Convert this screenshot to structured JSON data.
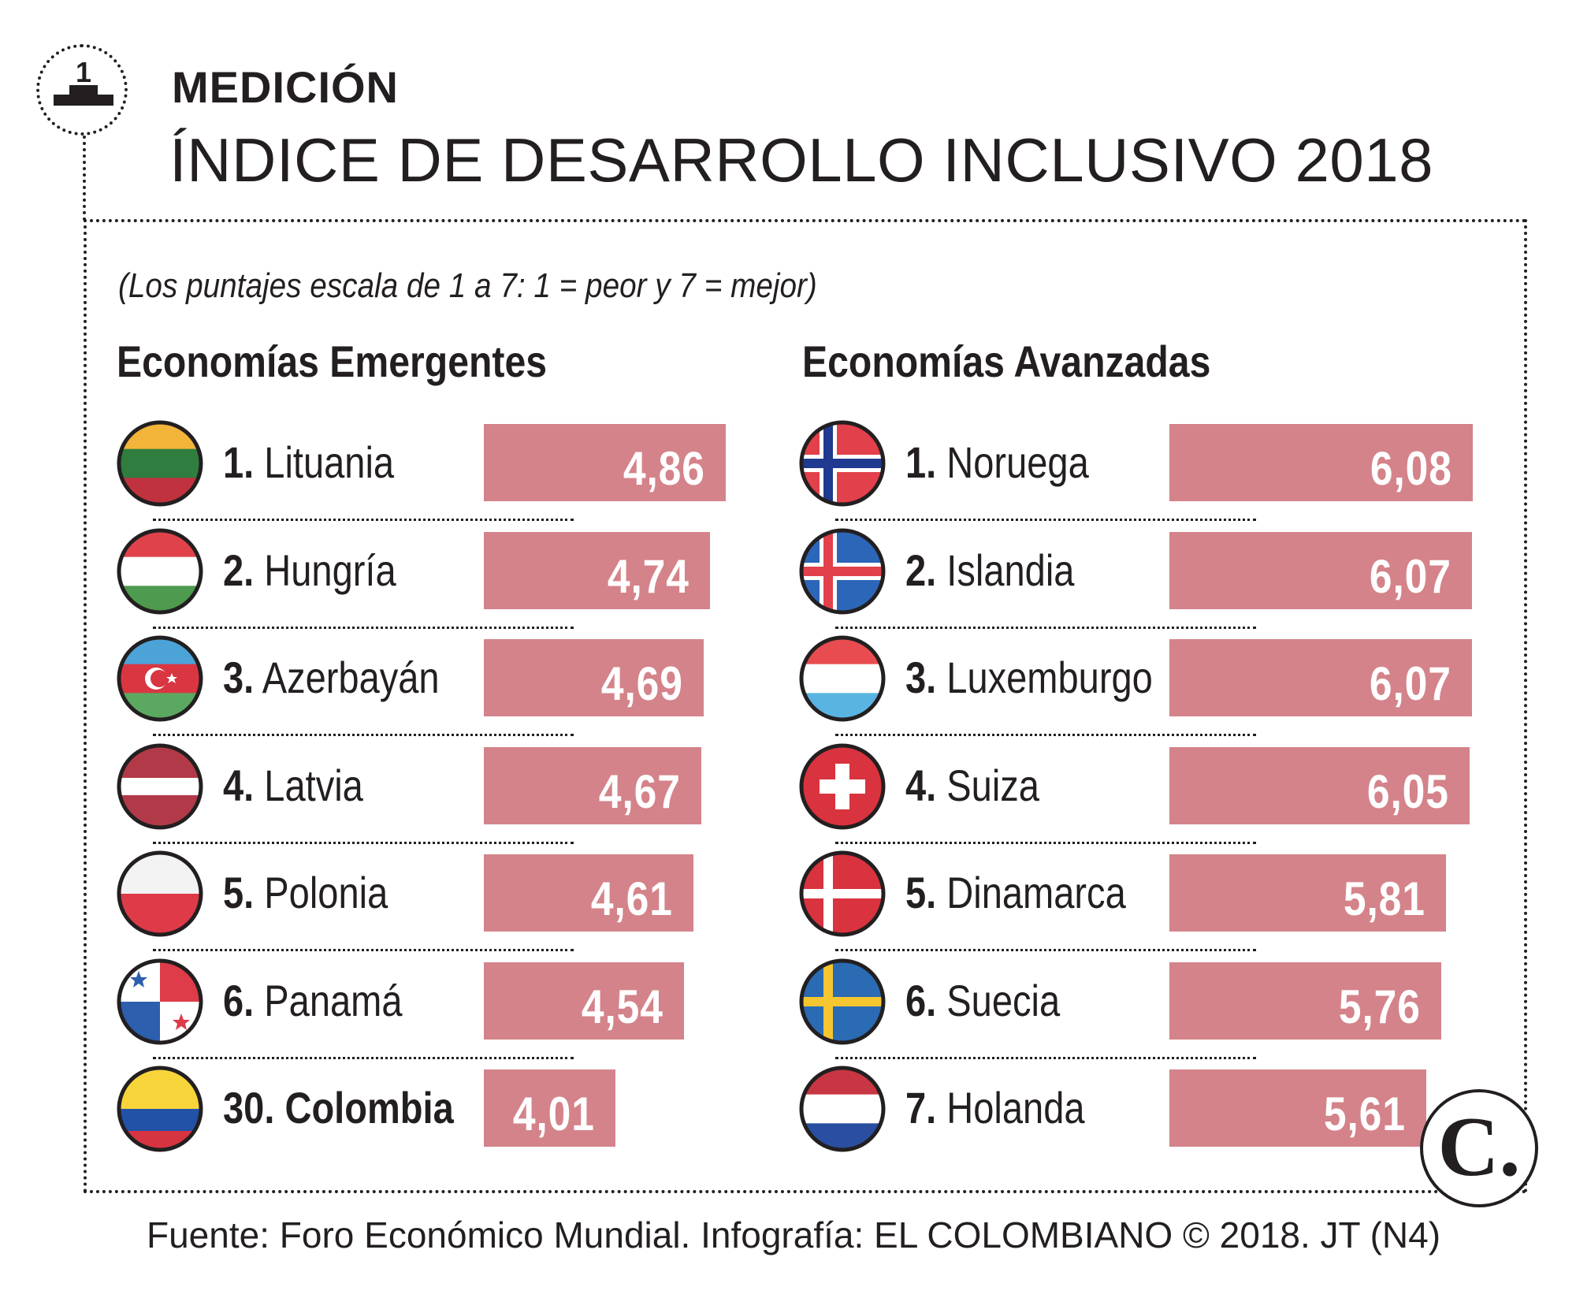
{
  "header": {
    "icon_number": "1",
    "kicker": "MEDICIÓN",
    "title": "ÍNDICE DE DESARROLLO INCLUSIVO 2018"
  },
  "subtitle": "(Los puntajes escala de 1 a 7: 1 = peor y 7 = mejor)",
  "chart_data": [
    {
      "type": "bar",
      "title": "Economías Emergentes",
      "ranks": [
        "1.",
        "2.",
        "3.",
        "4.",
        "5.",
        "6.",
        "30."
      ],
      "categories": [
        "Lituania",
        "Hungría",
        "Azerbayán",
        "Latvia",
        "Polonia",
        "Panamá",
        "Colombia"
      ],
      "values": [
        4.86,
        4.74,
        4.69,
        4.67,
        4.61,
        4.54,
        4.01
      ],
      "value_labels": [
        "4,86",
        "4,74",
        "4,69",
        "4,67",
        "4,61",
        "4,54",
        "4,01"
      ],
      "scale": [
        1,
        7
      ],
      "highlight": "Colombia"
    },
    {
      "type": "bar",
      "title": "Economías Avanzadas",
      "ranks": [
        "1.",
        "2.",
        "3.",
        "4.",
        "5.",
        "6.",
        "7."
      ],
      "categories": [
        "Noruega",
        "Islandia",
        "Luxemburgo",
        "Suiza",
        "Dinamarca",
        "Suecia",
        "Holanda"
      ],
      "values": [
        6.08,
        6.07,
        6.07,
        6.05,
        5.81,
        5.76,
        5.61
      ],
      "value_labels": [
        "6,08",
        "6,07",
        "6,07",
        "6,05",
        "5,81",
        "5,76",
        "5,61"
      ],
      "scale": [
        1,
        7
      ]
    }
  ],
  "colors": {
    "bar": "#d4838a",
    "text": "#231f20",
    "value_text": "#ffffff"
  },
  "logo": "C.",
  "source": "Fuente: Foro Económico Mundial. Infografía: EL COLOMBIANO © 2018. JT (N4)"
}
